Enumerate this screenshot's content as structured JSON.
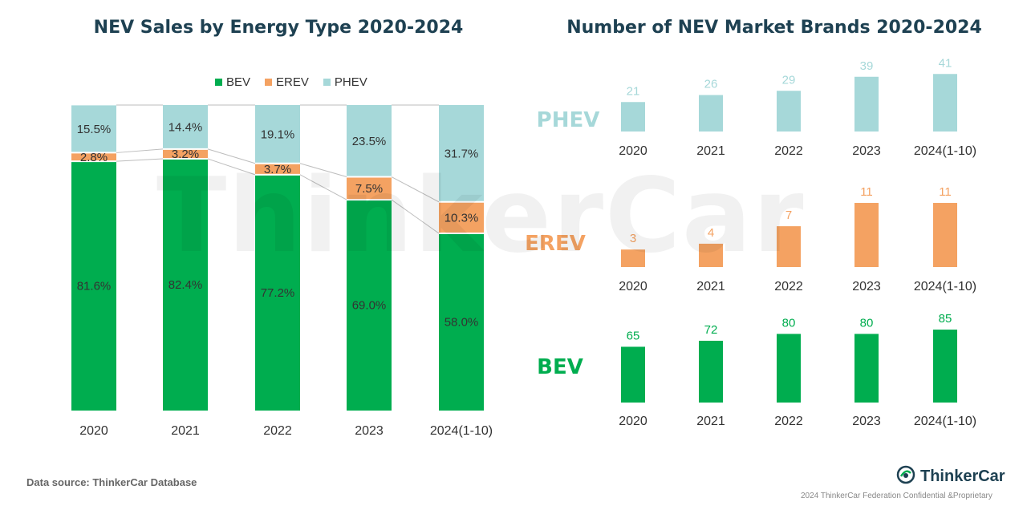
{
  "left_title": "NEV Sales by Energy Type 2020-2024",
  "right_title": "Number of NEV Market Brands 2020-2024",
  "watermark": "ThinkerCar",
  "source": "Data source: ThinkerCar Database",
  "brand": "ThinkerCar",
  "copyright": "2024 ThinkerCar Federation Confidential &Proprietary",
  "colors": {
    "BEV": "#00ad4f",
    "EREV": "#f4a262",
    "PHEV": "#a6d8d9",
    "title": "#1e4152"
  },
  "row_labels": {
    "PHEV": "PHEV",
    "EREV": "EREV",
    "BEV": "BEV"
  },
  "chart_data": [
    {
      "type": "bar",
      "stacked": true,
      "percent": true,
      "title": "NEV Sales by Energy Type 2020-2024",
      "categories": [
        "2020",
        "2021",
        "2022",
        "2023",
        "2024(1-10)"
      ],
      "series": [
        {
          "name": "BEV",
          "values": [
            81.6,
            82.4,
            77.2,
            69.0,
            58.0
          ],
          "labels": [
            "81.6%",
            "82.4%",
            "77.2%",
            "69.0%",
            "58.0%"
          ]
        },
        {
          "name": "EREV",
          "values": [
            2.8,
            3.2,
            3.7,
            7.5,
            10.3
          ],
          "labels": [
            "2.8%",
            "3.2%",
            "3.7%",
            "7.5%",
            "10.3%"
          ]
        },
        {
          "name": "PHEV",
          "values": [
            15.5,
            14.4,
            19.1,
            23.5,
            31.7
          ],
          "labels": [
            "15.5%",
            "14.4%",
            "19.1%",
            "23.5%",
            "31.7%"
          ]
        }
      ],
      "legend": "top-center",
      "ylim": [
        0,
        100
      ],
      "grid": false
    },
    {
      "type": "bar",
      "title": "Number of NEV Market Brands 2020-2024",
      "categories": [
        "2020",
        "2021",
        "2022",
        "2023",
        "2024(1-10)"
      ],
      "series": [
        {
          "name": "PHEV",
          "values": [
            21,
            26,
            29,
            39,
            41
          ]
        },
        {
          "name": "EREV",
          "values": [
            3,
            4,
            7,
            11,
            11
          ]
        },
        {
          "name": "BEV",
          "values": [
            65,
            72,
            80,
            80,
            85
          ]
        }
      ],
      "grid": false
    }
  ]
}
